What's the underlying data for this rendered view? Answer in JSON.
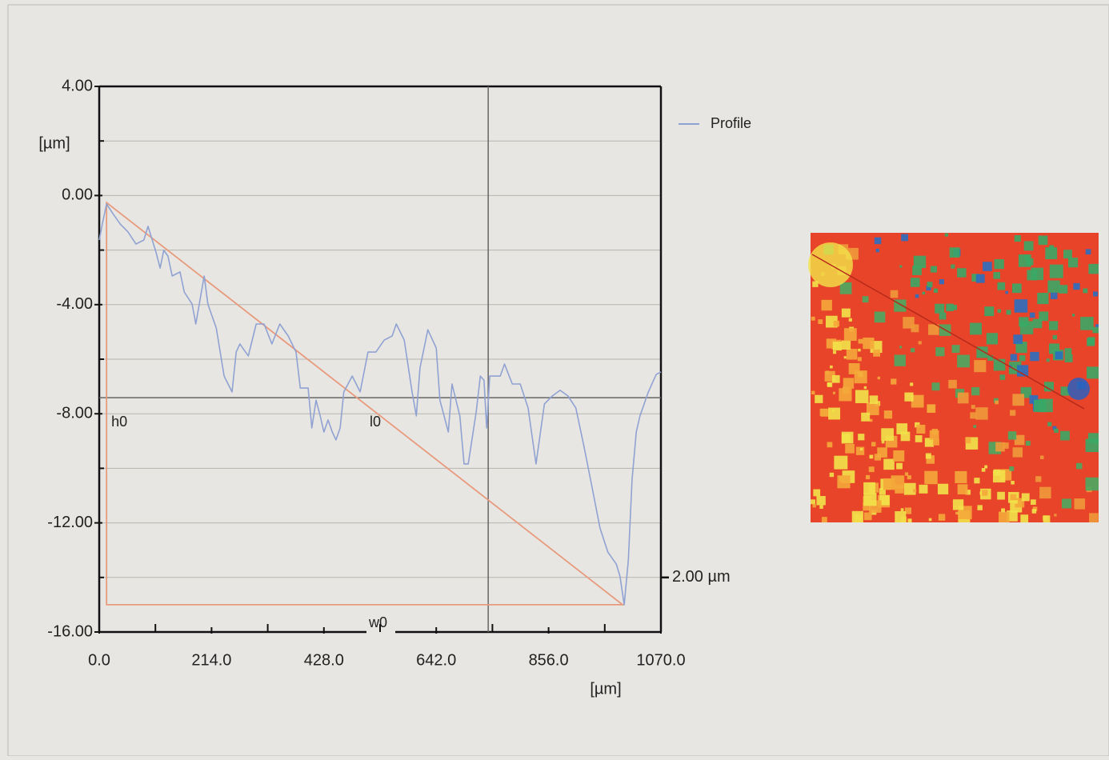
{
  "chart_data": {
    "type": "line",
    "ylabel": "[µm]",
    "xlabel": "[µm]",
    "xlim": [
      0,
      1070
    ],
    "ylim": [
      -16,
      4
    ],
    "xticks": [
      {
        "value": 0,
        "label": "0.0"
      },
      {
        "value": 214,
        "label": "214.0"
      },
      {
        "value": 428,
        "label": "428.0"
      },
      {
        "value": 642,
        "label": "642.0"
      },
      {
        "value": 856,
        "label": "856.0"
      },
      {
        "value": 1070,
        "label": "1070.0"
      }
    ],
    "xminorticks": [
      107,
      321,
      535,
      749,
      963
    ],
    "yticks": [
      {
        "value": 4,
        "label": "4.00"
      },
      {
        "value": 0,
        "label": "0.00"
      },
      {
        "value": -4,
        "label": "-4.00"
      },
      {
        "value": -8,
        "label": "-8.00"
      },
      {
        "value": -12,
        "label": "-12.00"
      },
      {
        "value": -16,
        "label": "-16.00"
      }
    ],
    "yminorticks": [
      2,
      -2,
      -6,
      -10,
      -14
    ],
    "grid": true,
    "legend_position": "top-right",
    "series": [
      {
        "name": "Profile",
        "color": "#8fa2d2",
        "x": [
          0,
          6,
          14,
          27,
          40,
          55,
          70,
          85,
          93,
          108,
          116,
          123,
          131,
          139,
          154,
          162,
          177,
          184,
          200,
          207,
          223,
          238,
          253,
          261,
          268,
          284,
          299,
          314,
          329,
          344,
          360,
          375,
          383,
          398,
          405,
          413,
          421,
          428,
          436,
          444,
          451,
          459,
          466,
          482,
          497,
          512,
          527,
          543,
          558,
          566,
          581,
          596,
          604,
          611,
          626,
          642,
          649,
          665,
          672,
          687,
          695,
          703,
          718,
          726,
          733,
          738,
          744,
          764,
          772,
          787,
          802,
          817,
          832,
          848,
          863,
          878,
          893,
          908,
          924,
          939,
          954,
          969,
          985,
          992,
          1000,
          1008,
          1015,
          1023,
          1030,
          1046,
          1061,
          1070
        ],
        "values": [
          -1.63,
          -1.04,
          -0.31,
          -0.69,
          -1.04,
          -1.34,
          -1.78,
          -1.63,
          -1.13,
          -2.07,
          -2.66,
          -2.01,
          -2.22,
          -2.95,
          -2.8,
          -3.54,
          -3.98,
          -4.71,
          -2.95,
          -3.98,
          -4.86,
          -6.62,
          -7.2,
          -5.74,
          -5.44,
          -5.88,
          -4.71,
          -4.71,
          -5.44,
          -4.71,
          -5.15,
          -5.74,
          -7.06,
          -7.06,
          -8.52,
          -7.5,
          -8.08,
          -8.67,
          -8.23,
          -8.67,
          -8.96,
          -8.52,
          -7.2,
          -6.62,
          -7.2,
          -5.74,
          -5.74,
          -5.3,
          -5.15,
          -4.71,
          -5.3,
          -7.2,
          -8.08,
          -6.32,
          -4.92,
          -5.59,
          -7.5,
          -8.67,
          -6.91,
          -8.08,
          -9.84,
          -9.84,
          -7.94,
          -6.62,
          -6.77,
          -8.52,
          -6.62,
          -6.62,
          -6.18,
          -6.91,
          -6.91,
          -7.79,
          -9.84,
          -7.64,
          -7.35,
          -7.14,
          -7.35,
          -7.79,
          -9.25,
          -10.72,
          -12.19,
          -13.07,
          -13.51,
          -13.95,
          -15.0,
          -13.36,
          -10.43,
          -8.67,
          -8.08,
          -7.2,
          -6.56,
          -6.47
        ]
      }
    ],
    "cursor": {
      "x": 741,
      "y": -7.41,
      "color": "#666666"
    },
    "reference_triangle": {
      "x0": 14,
      "y0": -0.26,
      "x1": 997,
      "y1": -15.0,
      "color": "#e89a7c",
      "labels": {
        "height": "h0",
        "hypotenuse": "l0",
        "width": "w0"
      }
    },
    "right_marker": {
      "value": -14,
      "label": "2.00 µm"
    }
  }
}
